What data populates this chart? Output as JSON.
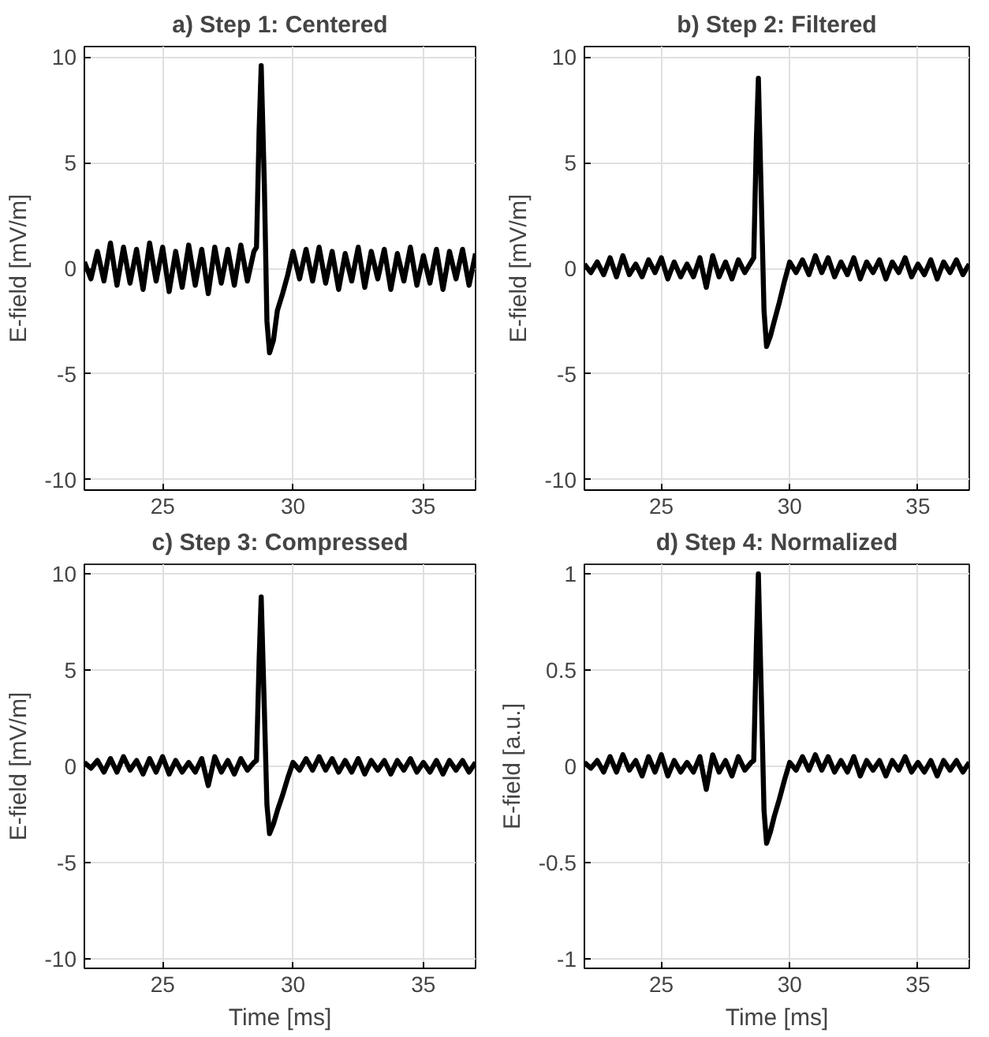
{
  "chart_data": [
    {
      "type": "line",
      "title": "a) Step 1: Centered",
      "ylabel": "E-field [mV/m]",
      "xlim": [
        22,
        37
      ],
      "ylim": [
        -10.5,
        10.5
      ],
      "xticks": [
        25,
        30,
        35
      ],
      "yticks": [
        -10,
        -5,
        0,
        5,
        10
      ],
      "grid": true,
      "line_style": "solid",
      "series": [
        {
          "color": "#000000",
          "x": [
            22,
            22.25,
            22.5,
            22.75,
            23,
            23.25,
            23.5,
            23.75,
            24,
            24.25,
            24.5,
            24.75,
            25,
            25.25,
            25.5,
            25.75,
            26,
            26.25,
            26.5,
            26.75,
            27,
            27.25,
            27.5,
            27.75,
            28,
            28.25,
            28.5,
            28.6,
            28.7,
            28.78,
            28.9,
            29.0,
            29.1,
            29.25,
            29.4,
            29.6,
            29.8,
            30.0,
            30.25,
            30.5,
            30.75,
            31,
            31.25,
            31.5,
            31.75,
            32,
            32.25,
            32.5,
            32.75,
            33,
            33.25,
            33.5,
            33.75,
            34,
            34.25,
            34.5,
            34.75,
            35,
            35.25,
            35.5,
            35.75,
            36,
            36.25,
            36.5,
            36.75,
            37
          ],
          "values": [
            0.3,
            -0.5,
            0.8,
            -0.6,
            1.2,
            -0.8,
            1.0,
            -0.7,
            0.9,
            -1.0,
            1.2,
            -0.6,
            1.0,
            -1.1,
            0.8,
            -0.9,
            1.1,
            -0.8,
            0.9,
            -1.2,
            1.0,
            -0.7,
            0.9,
            -0.8,
            1.1,
            -0.6,
            0.8,
            1.0,
            6.5,
            9.6,
            4.0,
            -2.5,
            -4.0,
            -3.4,
            -2.0,
            -1.2,
            -0.3,
            0.8,
            -0.5,
            0.9,
            -0.6,
            1.0,
            -0.7,
            0.8,
            -1.0,
            0.7,
            -0.6,
            1.0,
            -0.9,
            0.8,
            -0.5,
            0.9,
            -1.0,
            0.7,
            -0.6,
            1.0,
            -0.8,
            0.6,
            -0.7,
            0.9,
            -1.0,
            0.8,
            -0.5,
            0.9,
            -0.8,
            0.7
          ]
        }
      ]
    },
    {
      "type": "line",
      "title": "b) Step 2: Filtered",
      "ylabel": "E-field [mV/m]",
      "xlim": [
        22,
        37
      ],
      "ylim": [
        -10.5,
        10.5
      ],
      "xticks": [
        25,
        30,
        35
      ],
      "yticks": [
        -10,
        -5,
        0,
        5,
        10
      ],
      "grid": true,
      "line_style": "solid",
      "series": [
        {
          "color": "#000000",
          "x": [
            22,
            22.25,
            22.5,
            22.75,
            23,
            23.25,
            23.5,
            23.75,
            24,
            24.25,
            24.5,
            24.75,
            25,
            25.25,
            25.5,
            25.75,
            26,
            26.25,
            26.5,
            26.75,
            27,
            27.25,
            27.5,
            27.75,
            28,
            28.25,
            28.5,
            28.6,
            28.7,
            28.78,
            28.9,
            29.0,
            29.1,
            29.25,
            29.4,
            29.6,
            29.8,
            30.0,
            30.25,
            30.5,
            30.75,
            31,
            31.25,
            31.5,
            31.75,
            32,
            32.25,
            32.5,
            32.75,
            33,
            33.25,
            33.5,
            33.75,
            34,
            34.25,
            34.5,
            34.75,
            35,
            35.25,
            35.5,
            35.75,
            36,
            36.25,
            36.5,
            36.75,
            37
          ],
          "values": [
            0.2,
            -0.2,
            0.3,
            -0.3,
            0.5,
            -0.4,
            0.6,
            -0.3,
            0.2,
            -0.4,
            0.4,
            -0.2,
            0.5,
            -0.5,
            0.3,
            -0.4,
            0.2,
            -0.4,
            0.5,
            -0.9,
            0.6,
            -0.4,
            0.3,
            -0.5,
            0.4,
            -0.2,
            0.3,
            0.5,
            6.0,
            9.0,
            3.0,
            -2.0,
            -3.7,
            -3.2,
            -2.5,
            -1.6,
            -0.6,
            0.3,
            -0.2,
            0.4,
            -0.3,
            0.6,
            -0.2,
            0.5,
            -0.4,
            0.3,
            -0.3,
            0.5,
            -0.5,
            0.3,
            -0.2,
            0.4,
            -0.5,
            0.3,
            -0.2,
            0.5,
            -0.4,
            0.2,
            -0.3,
            0.4,
            -0.5,
            0.3,
            -0.2,
            0.4,
            -0.3,
            0.2
          ]
        }
      ]
    },
    {
      "type": "line",
      "title": "c) Step 3: Compressed",
      "xlabel": "Time [ms]",
      "ylabel": "E-field [mV/m]",
      "xlim": [
        22,
        37
      ],
      "ylim": [
        -10.5,
        10.5
      ],
      "xticks": [
        25,
        30,
        35
      ],
      "yticks": [
        -10,
        -5,
        0,
        5,
        10
      ],
      "grid": true,
      "line_style": "solid",
      "series": [
        {
          "color": "#000000",
          "x": [
            22,
            22.25,
            22.5,
            22.75,
            23,
            23.25,
            23.5,
            23.75,
            24,
            24.25,
            24.5,
            24.75,
            25,
            25.25,
            25.5,
            25.75,
            26,
            26.25,
            26.5,
            26.75,
            27,
            27.25,
            27.5,
            27.75,
            28,
            28.25,
            28.5,
            28.6,
            28.7,
            28.78,
            28.9,
            29.0,
            29.1,
            29.25,
            29.4,
            29.6,
            29.8,
            30.0,
            30.25,
            30.5,
            30.75,
            31,
            31.25,
            31.5,
            31.75,
            32,
            32.25,
            32.5,
            32.75,
            33,
            33.25,
            33.5,
            33.75,
            34,
            34.25,
            34.5,
            34.75,
            35,
            35.25,
            35.5,
            35.75,
            36,
            36.25,
            36.5,
            36.75,
            37
          ],
          "values": [
            0.2,
            -0.1,
            0.3,
            -0.3,
            0.4,
            -0.3,
            0.5,
            -0.2,
            0.3,
            -0.4,
            0.4,
            -0.3,
            0.5,
            -0.4,
            0.3,
            -0.3,
            0.2,
            -0.3,
            0.4,
            -1.0,
            0.5,
            -0.3,
            0.3,
            -0.4,
            0.4,
            -0.2,
            0.2,
            0.3,
            5.5,
            8.8,
            3.0,
            -2.0,
            -3.5,
            -3.0,
            -2.3,
            -1.5,
            -0.6,
            0.2,
            -0.2,
            0.4,
            -0.2,
            0.5,
            -0.2,
            0.4,
            -0.3,
            0.3,
            -0.3,
            0.4,
            -0.4,
            0.3,
            -0.2,
            0.3,
            -0.4,
            0.3,
            -0.2,
            0.4,
            -0.3,
            0.2,
            -0.3,
            0.3,
            -0.4,
            0.3,
            -0.2,
            0.3,
            -0.3,
            0.2
          ]
        }
      ]
    },
    {
      "type": "line",
      "title": "d) Step 4: Normalized",
      "xlabel": "Time [ms]",
      "ylabel": "E-field [a.u.]",
      "xlim": [
        22,
        37
      ],
      "ylim": [
        -1.05,
        1.05
      ],
      "xticks": [
        25,
        30,
        35
      ],
      "yticks": [
        -1,
        -0.5,
        0,
        0.5,
        1
      ],
      "grid": true,
      "line_style": "solid",
      "series": [
        {
          "color": "#000000",
          "x": [
            22,
            22.25,
            22.5,
            22.75,
            23,
            23.25,
            23.5,
            23.75,
            24,
            24.25,
            24.5,
            24.75,
            25,
            25.25,
            25.5,
            25.75,
            26,
            26.25,
            26.5,
            26.75,
            27,
            27.25,
            27.5,
            27.75,
            28,
            28.25,
            28.5,
            28.6,
            28.7,
            28.78,
            28.9,
            29.0,
            29.1,
            29.25,
            29.4,
            29.6,
            29.8,
            30.0,
            30.25,
            30.5,
            30.75,
            31,
            31.25,
            31.5,
            31.75,
            32,
            32.25,
            32.5,
            32.75,
            33,
            33.25,
            33.5,
            33.75,
            34,
            34.25,
            34.5,
            34.75,
            35,
            35.25,
            35.5,
            35.75,
            36,
            36.25,
            36.5,
            36.75,
            37
          ],
          "values": [
            0.02,
            -0.01,
            0.03,
            -0.03,
            0.05,
            -0.03,
            0.06,
            -0.02,
            0.03,
            -0.05,
            0.05,
            -0.03,
            0.06,
            -0.05,
            0.03,
            -0.03,
            0.02,
            -0.03,
            0.05,
            -0.12,
            0.06,
            -0.03,
            0.03,
            -0.05,
            0.05,
            -0.02,
            0.02,
            0.03,
            0.62,
            1.0,
            0.34,
            -0.23,
            -0.4,
            -0.34,
            -0.26,
            -0.17,
            -0.07,
            0.02,
            -0.02,
            0.05,
            -0.02,
            0.06,
            -0.02,
            0.05,
            -0.03,
            0.03,
            -0.03,
            0.05,
            -0.05,
            0.03,
            -0.02,
            0.03,
            -0.05,
            0.03,
            -0.02,
            0.05,
            -0.03,
            0.02,
            -0.03,
            0.03,
            -0.05,
            0.03,
            -0.02,
            0.03,
            -0.03,
            0.02
          ]
        }
      ]
    }
  ]
}
